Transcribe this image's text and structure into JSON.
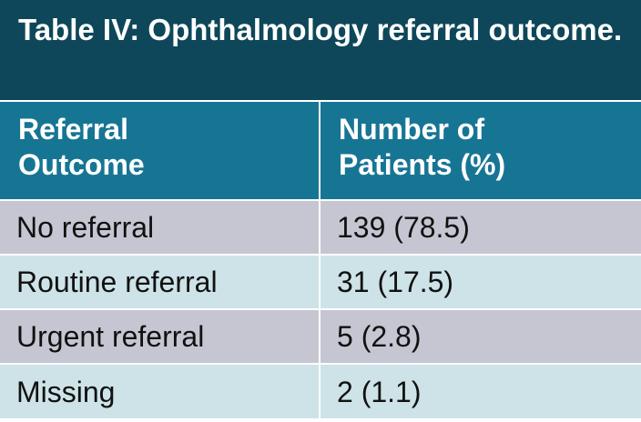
{
  "title": "Table IV: Ophthalmology referral outcome.",
  "headers": {
    "col1_line1": "Referral",
    "col1_line2": "Outcome",
    "col2_line1": "Number of",
    "col2_line2": "Patients (%)"
  },
  "rows": [
    {
      "outcome": "No referral",
      "value": "139 (78.5)"
    },
    {
      "outcome": "Routine referral",
      "value": "31 (17.5)"
    },
    {
      "outcome": "Urgent referral",
      "value": "5 (2.8)"
    },
    {
      "outcome": "Missing",
      "value": "2 (1.1)"
    }
  ],
  "colors": {
    "title_bg": "#0e4759",
    "header_bg": "#177594",
    "row_odd_bg": "#c6c6d3",
    "row_even_bg": "#cde3e7"
  }
}
